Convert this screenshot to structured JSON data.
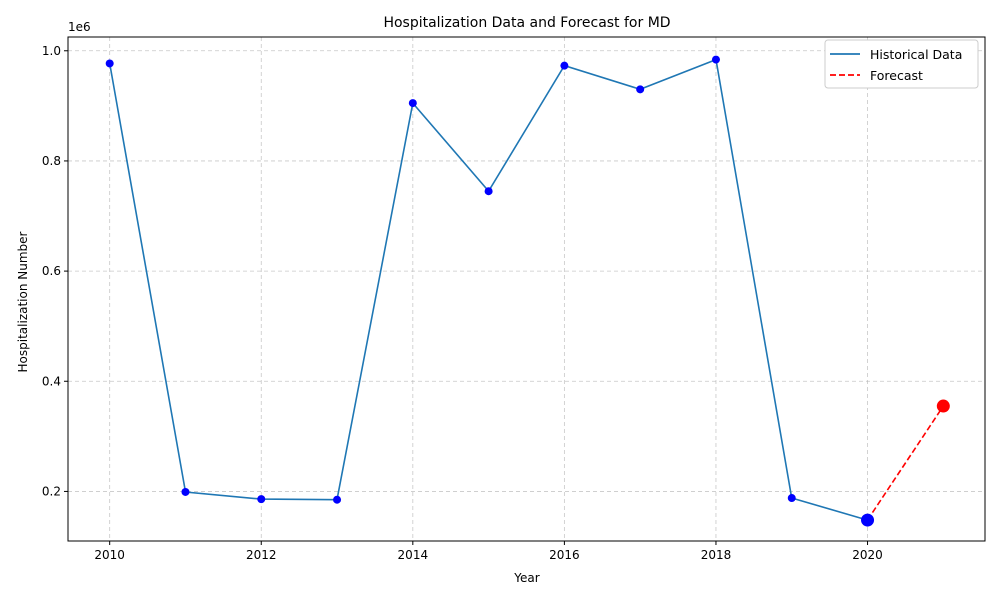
{
  "chart_data": {
    "type": "line",
    "title": "Hospitalization Data and Forecast for MD",
    "xlabel": "Year",
    "ylabel": "Hospitalization Number",
    "offset_label": "1e6",
    "xlim": [
      2009.45,
      2021.55
    ],
    "ylim": [
      110000,
      1025000
    ],
    "x_ticks": [
      2010,
      2012,
      2014,
      2016,
      2018,
      2020
    ],
    "x_tick_labels": [
      "2010",
      "2012",
      "2014",
      "2016",
      "2018",
      "2020"
    ],
    "y_ticks": [
      200000,
      400000,
      600000,
      800000,
      1000000
    ],
    "y_tick_labels": [
      "0.2",
      "0.4",
      "0.6",
      "0.8",
      "1.0"
    ],
    "grid": true,
    "legend_position": "top-right",
    "series": [
      {
        "name": "Historical Data",
        "style": "solid",
        "color": "#1f77b4",
        "marker_color": "#0000ff",
        "x": [
          2010,
          2011,
          2012,
          2013,
          2014,
          2015,
          2016,
          2017,
          2018,
          2019,
          2020
        ],
        "y": [
          977000,
          199000,
          186000,
          185000,
          905000,
          745000,
          973000,
          930000,
          984000,
          188000,
          148000
        ]
      },
      {
        "name": "Forecast",
        "style": "dashed",
        "color": "#ff0000",
        "marker_color": "#ff0000",
        "x": [
          2020,
          2021
        ],
        "y": [
          148000,
          355000
        ]
      }
    ],
    "highlight_points": [
      {
        "x": 2020,
        "y": 148000,
        "color": "#0000ff"
      },
      {
        "x": 2021,
        "y": 355000,
        "color": "#ff0000"
      }
    ]
  }
}
